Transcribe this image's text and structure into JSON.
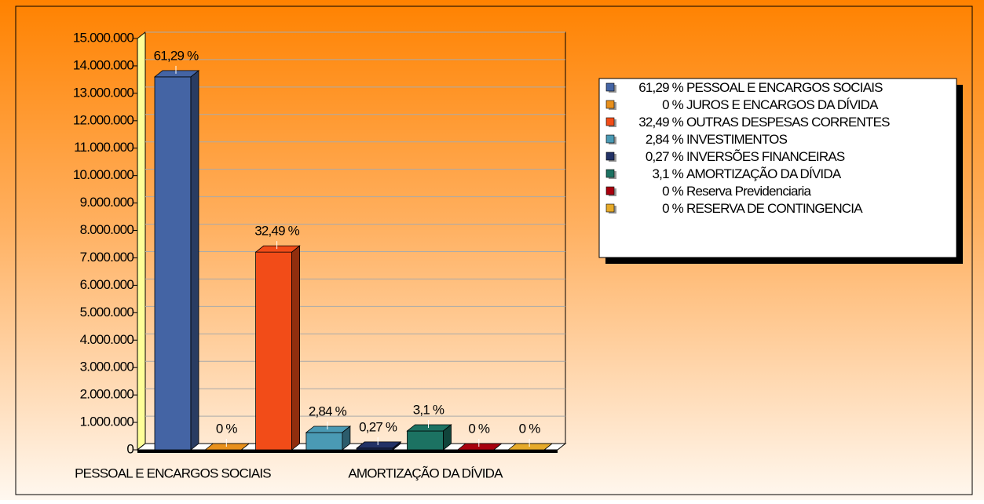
{
  "chart_data": {
    "type": "bar3d",
    "categories": [
      "PESSOAL E ENCARGOS SOCIAIS",
      null,
      null,
      null,
      null,
      "AMORTIZAÇÃO DA DÍVIDA",
      null,
      null
    ],
    "values": [
      13600000,
      0,
      7210000,
      630000,
      60000,
      688000,
      0,
      0
    ],
    "value_labels": [
      "61,29 %",
      "0 %",
      "32,49 %",
      "2,84 %",
      "0,27 %",
      "3,1 %",
      "0 %",
      "0 %"
    ],
    "colors": [
      "#4464a4",
      "#e8901c",
      "#f24c18",
      "#4a9ab4",
      "#223266",
      "#1c7262",
      "#a8000e",
      "#e6aa2a"
    ],
    "legend": [
      "PESSOAL E ENCARGOS SOCIAIS",
      "JUROS E ENCARGOS DA DÍVIDA",
      "OUTRAS DESPESAS CORRENTES",
      "INVESTIMENTOS",
      "INVERSÕES FINANCEIRAS",
      "AMORTIZAÇÃO DA DÍVIDA",
      "Reserva Previdenciaria",
      "RESERVA DE CONTINGENCIA"
    ],
    "ylim": [
      0,
      15000000
    ],
    "yticks": [
      {
        "value": 0,
        "label": "0"
      },
      {
        "value": 1000000,
        "label": "1.000.000"
      },
      {
        "value": 2000000,
        "label": "2.000.000"
      },
      {
        "value": 3000000,
        "label": "3.000.000"
      },
      {
        "value": 4000000,
        "label": "4.000.000"
      },
      {
        "value": 5000000,
        "label": "5.000.000"
      },
      {
        "value": 6000000,
        "label": "6.000.000"
      },
      {
        "value": 7000000,
        "label": "7.000.000"
      },
      {
        "value": 8000000,
        "label": "8.000.000"
      },
      {
        "value": 9000000,
        "label": "9.000.000"
      },
      {
        "value": 10000000,
        "label": "10.000.000"
      },
      {
        "value": 11000000,
        "label": "11.000.000"
      },
      {
        "value": 12000000,
        "label": "12.000.000"
      },
      {
        "value": 13000000,
        "label": "13.000.000"
      },
      {
        "value": 14000000,
        "label": "14.000.000"
      },
      {
        "value": 15000000,
        "label": "15.000.000"
      }
    ],
    "grid": true
  }
}
